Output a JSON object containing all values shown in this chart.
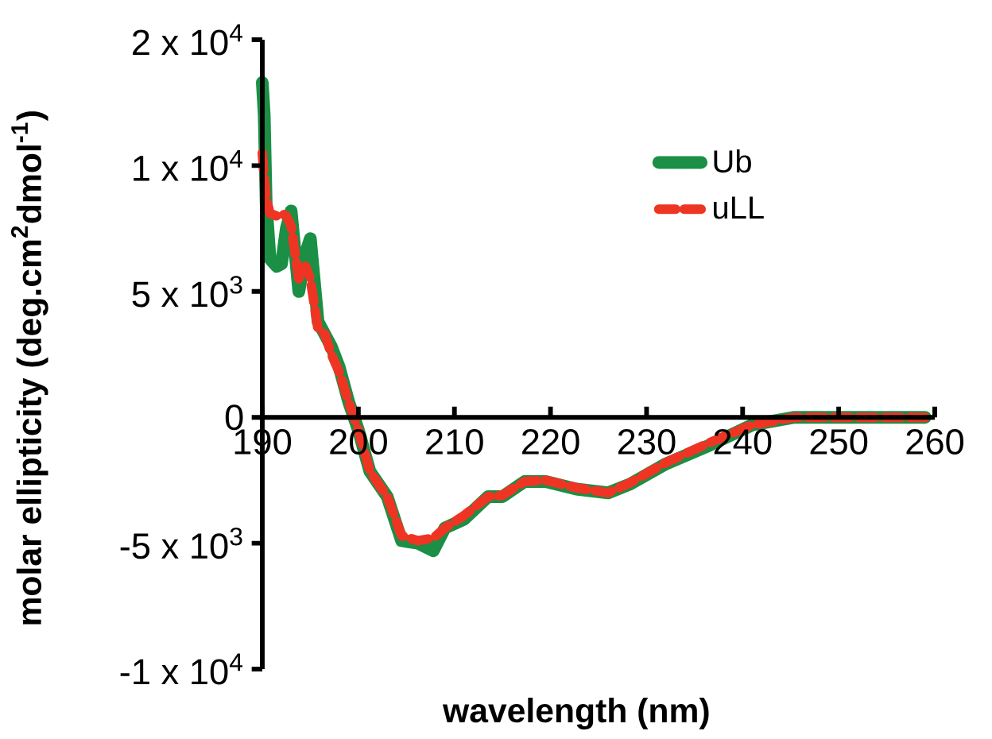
{
  "chart_data": {
    "type": "line",
    "xlabel": "wavelength (nm)",
    "ylabel": "molar ellipticity (deg.cm$^{2}$dmol$^{-1}$)",
    "x": [
      190,
      190.2,
      190.4,
      190.8,
      191.5,
      192,
      192.5,
      193,
      193.8,
      194.5,
      195,
      195.8,
      196.5,
      197.2,
      198,
      199,
      200,
      201.2,
      203,
      204.5,
      206.2,
      207.8,
      209,
      211,
      213.5,
      215,
      217.3,
      219.5,
      222.7,
      226,
      228.3,
      232,
      236.6,
      241,
      245.4,
      248,
      252,
      256,
      259
    ],
    "series": [
      {
        "name": "Ub",
        "color": "#1a8f45",
        "line_style": "solid",
        "values": [
          13300,
          12000,
          8500,
          6300,
          6000,
          6100,
          7500,
          8200,
          5000,
          6500,
          7100,
          3800,
          3300,
          2800,
          2000,
          600,
          -500,
          -2150,
          -3150,
          -4900,
          -5000,
          -5300,
          -4400,
          -4050,
          -3150,
          -3150,
          -2550,
          -2550,
          -2850,
          -3000,
          -2650,
          -1850,
          -1100,
          -300,
          0,
          0,
          0,
          0,
          0
        ]
      },
      {
        "name": "uLL",
        "color": "#ee3524",
        "line_style": "dashed",
        "values": [
          10500,
          9500,
          8700,
          8100,
          8000,
          8100,
          8000,
          7600,
          5500,
          6000,
          5500,
          3500,
          3300,
          2500,
          1800,
          600,
          -500,
          -2150,
          -3150,
          -4700,
          -4900,
          -4800,
          -4400,
          -3900,
          -3150,
          -3100,
          -2550,
          -2500,
          -2800,
          -3000,
          -2600,
          -1800,
          -1000,
          -300,
          0,
          0,
          0,
          0,
          0
        ]
      }
    ],
    "xlim": [
      190,
      260
    ],
    "xticks": [
      190,
      200,
      210,
      220,
      230,
      240,
      250,
      260
    ],
    "ylim": [
      -10000,
      15000
    ],
    "yticks": [
      {
        "value": -10000,
        "label": "-1 x 10$^{4}$"
      },
      {
        "value": -5000,
        "label": "-5 x 10$^{3}$"
      },
      {
        "value": 0,
        "label": "0"
      },
      {
        "value": 5000,
        "label": "5 x 10$^{3}$"
      },
      {
        "value": 10000,
        "label": "1 x 10$^{4}$"
      },
      {
        "value": 15000,
        "label": "2 x 10$^{4}$"
      }
    ],
    "grid": false,
    "legend": "top right",
    "marker": "none"
  }
}
